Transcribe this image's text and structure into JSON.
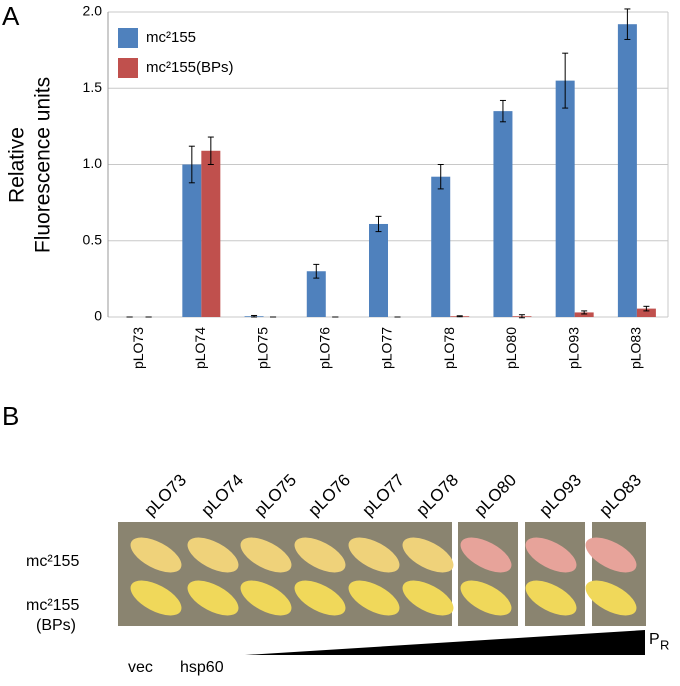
{
  "panel_a_label": "A",
  "panel_b_label": "B",
  "chart_data": {
    "type": "bar",
    "ylabel": [
      "Relative",
      "Fluorescence units"
    ],
    "categories": [
      "pLO73",
      "pLO74",
      "pLO75",
      "pLO76",
      "pLO77",
      "pLO78",
      "pLO80",
      "pLO93",
      "pLO83"
    ],
    "series": [
      {
        "name": "mc²155",
        "color": "#4f81bd",
        "values": [
          0,
          1.0,
          0.005,
          0.3,
          0.61,
          0.92,
          1.35,
          1.55,
          1.92
        ],
        "errors": [
          0,
          0.12,
          0.005,
          0.045,
          0.05,
          0.08,
          0.07,
          0.18,
          0.1
        ]
      },
      {
        "name": "mc²155(BPs)",
        "color": "#c0504d",
        "values": [
          0,
          1.09,
          0,
          0,
          0,
          0.005,
          0.005,
          0.03,
          0.055
        ],
        "errors": [
          0,
          0.09,
          0,
          0,
          0,
          0.003,
          0.01,
          0.01,
          0.015
        ]
      }
    ],
    "ylim": [
      0,
      2
    ],
    "yticks": [
      0,
      0.5,
      {
        "value": 1,
        "label": "1.0"
      },
      1.5,
      {
        "value": 2,
        "label": "2.0"
      }
    ],
    "grid": true,
    "legend": "upper-left"
  },
  "panel_b": {
    "columns": [
      "pLO73",
      "pLO74",
      "pLO75",
      "pLO76",
      "pLO77",
      "pLO78",
      "pLO80",
      "pLO93",
      "pLO83"
    ],
    "rows": [
      [
        "mc²155"
      ],
      [
        "mc²155",
        "(BPs)"
      ]
    ],
    "promoters": {
      "vec": "vec",
      "hsp60": "hsp60",
      "pr_main": "P",
      "pr_sub": "R"
    }
  }
}
